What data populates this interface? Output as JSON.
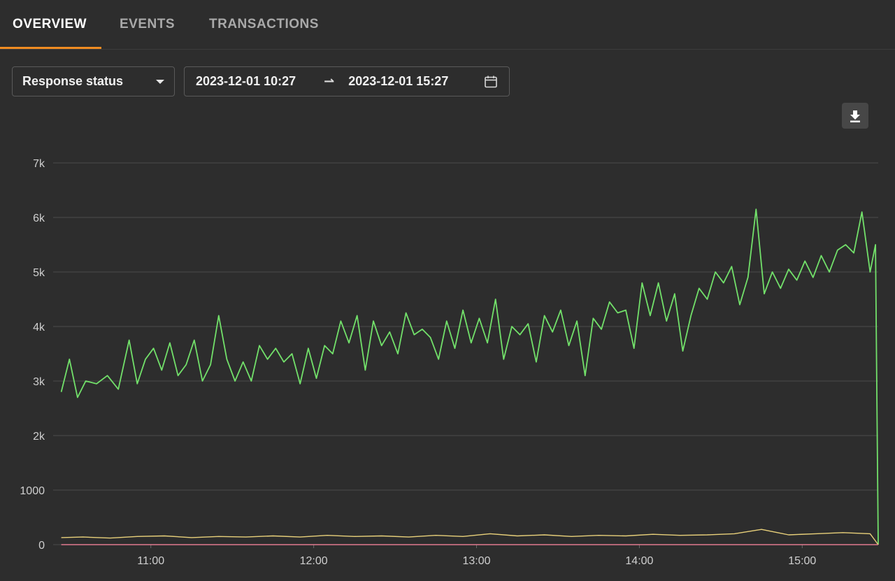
{
  "tabs": [
    {
      "label": "OVERVIEW",
      "active": true
    },
    {
      "label": "EVENTS",
      "active": false
    },
    {
      "label": "TRANSACTIONS",
      "active": false
    }
  ],
  "filter": {
    "selected": "Response status"
  },
  "date_range": {
    "start": "2023-12-01 10:27",
    "end": "2023-12-01 15:27"
  },
  "icons": {
    "select": "caret-down-icon",
    "range": "arrow-right-icon",
    "calendar": "calendar-icon",
    "download": "download-icon"
  },
  "chart_data": {
    "type": "line",
    "x_unit": "minutes since 10:27",
    "xlim": [
      "10:27",
      "15:27"
    ],
    "ylim": [
      0,
      7000
    ],
    "yticks": [
      {
        "value": 0,
        "label": "0"
      },
      {
        "value": 1000,
        "label": "1000"
      },
      {
        "value": 2000,
        "label": "2k"
      },
      {
        "value": 3000,
        "label": "3k"
      },
      {
        "value": 4000,
        "label": "4k"
      },
      {
        "value": 5000,
        "label": "5k"
      },
      {
        "value": 6000,
        "label": "6k"
      },
      {
        "value": 7000,
        "label": "7k"
      }
    ],
    "xticks": [
      "11:00",
      "12:00",
      "13:00",
      "14:00",
      "15:00"
    ],
    "grid": true,
    "series": [
      {
        "color": "#72e06a",
        "points": [
          [
            "10:27",
            2800
          ],
          [
            "10:30",
            3400
          ],
          [
            "10:33",
            2700
          ],
          [
            "10:36",
            3000
          ],
          [
            "10:40",
            2950
          ],
          [
            "10:44",
            3100
          ],
          [
            "10:48",
            2850
          ],
          [
            "10:52",
            3750
          ],
          [
            "10:55",
            2950
          ],
          [
            "10:58",
            3400
          ],
          [
            "11:01",
            3600
          ],
          [
            "11:04",
            3200
          ],
          [
            "11:07",
            3700
          ],
          [
            "11:10",
            3100
          ],
          [
            "11:13",
            3300
          ],
          [
            "11:16",
            3750
          ],
          [
            "11:19",
            3000
          ],
          [
            "11:22",
            3300
          ],
          [
            "11:25",
            4200
          ],
          [
            "11:28",
            3400
          ],
          [
            "11:31",
            3000
          ],
          [
            "11:34",
            3350
          ],
          [
            "11:37",
            3000
          ],
          [
            "11:40",
            3650
          ],
          [
            "11:43",
            3400
          ],
          [
            "11:46",
            3600
          ],
          [
            "11:49",
            3350
          ],
          [
            "11:52",
            3500
          ],
          [
            "11:55",
            2950
          ],
          [
            "11:58",
            3600
          ],
          [
            "12:01",
            3050
          ],
          [
            "12:04",
            3650
          ],
          [
            "12:07",
            3500
          ],
          [
            "12:10",
            4100
          ],
          [
            "12:13",
            3700
          ],
          [
            "12:16",
            4200
          ],
          [
            "12:19",
            3200
          ],
          [
            "12:22",
            4100
          ],
          [
            "12:25",
            3650
          ],
          [
            "12:28",
            3900
          ],
          [
            "12:31",
            3500
          ],
          [
            "12:34",
            4250
          ],
          [
            "12:37",
            3850
          ],
          [
            "12:40",
            3950
          ],
          [
            "12:43",
            3800
          ],
          [
            "12:46",
            3400
          ],
          [
            "12:49",
            4100
          ],
          [
            "12:52",
            3600
          ],
          [
            "12:55",
            4300
          ],
          [
            "12:58",
            3700
          ],
          [
            "13:01",
            4150
          ],
          [
            "13:04",
            3700
          ],
          [
            "13:07",
            4500
          ],
          [
            "13:10",
            3400
          ],
          [
            "13:13",
            4000
          ],
          [
            "13:16",
            3850
          ],
          [
            "13:19",
            4050
          ],
          [
            "13:22",
            3350
          ],
          [
            "13:25",
            4200
          ],
          [
            "13:28",
            3900
          ],
          [
            "13:31",
            4300
          ],
          [
            "13:34",
            3650
          ],
          [
            "13:37",
            4100
          ],
          [
            "13:40",
            3100
          ],
          [
            "13:43",
            4150
          ],
          [
            "13:46",
            3950
          ],
          [
            "13:49",
            4450
          ],
          [
            "13:52",
            4250
          ],
          [
            "13:55",
            4300
          ],
          [
            "13:58",
            3600
          ],
          [
            "14:01",
            4800
          ],
          [
            "14:04",
            4200
          ],
          [
            "14:07",
            4800
          ],
          [
            "14:10",
            4100
          ],
          [
            "14:13",
            4600
          ],
          [
            "14:16",
            3550
          ],
          [
            "14:19",
            4200
          ],
          [
            "14:22",
            4700
          ],
          [
            "14:25",
            4500
          ],
          [
            "14:28",
            5000
          ],
          [
            "14:31",
            4800
          ],
          [
            "14:34",
            5100
          ],
          [
            "14:37",
            4400
          ],
          [
            "14:40",
            4900
          ],
          [
            "14:43",
            6150
          ],
          [
            "14:46",
            4600
          ],
          [
            "14:49",
            5000
          ],
          [
            "14:52",
            4700
          ],
          [
            "14:55",
            5050
          ],
          [
            "14:58",
            4850
          ],
          [
            "15:01",
            5200
          ],
          [
            "15:04",
            4900
          ],
          [
            "15:07",
            5300
          ],
          [
            "15:10",
            5000
          ],
          [
            "15:13",
            5400
          ],
          [
            "15:16",
            5500
          ],
          [
            "15:19",
            5350
          ],
          [
            "15:22",
            6100
          ],
          [
            "15:25",
            5000
          ],
          [
            "15:27",
            5500
          ],
          [
            "15:28",
            0
          ]
        ]
      },
      {
        "color": "#e8d07a",
        "points": [
          [
            "10:27",
            130
          ],
          [
            "10:35",
            140
          ],
          [
            "10:45",
            120
          ],
          [
            "10:55",
            150
          ],
          [
            "11:05",
            160
          ],
          [
            "11:15",
            130
          ],
          [
            "11:25",
            150
          ],
          [
            "11:35",
            140
          ],
          [
            "11:45",
            160
          ],
          [
            "11:55",
            140
          ],
          [
            "12:05",
            170
          ],
          [
            "12:15",
            150
          ],
          [
            "12:25",
            160
          ],
          [
            "12:35",
            140
          ],
          [
            "12:45",
            170
          ],
          [
            "12:55",
            150
          ],
          [
            "13:05",
            200
          ],
          [
            "13:15",
            160
          ],
          [
            "13:25",
            180
          ],
          [
            "13:35",
            150
          ],
          [
            "13:45",
            170
          ],
          [
            "13:55",
            160
          ],
          [
            "14:05",
            190
          ],
          [
            "14:15",
            170
          ],
          [
            "14:25",
            180
          ],
          [
            "14:35",
            200
          ],
          [
            "14:45",
            280
          ],
          [
            "14:55",
            180
          ],
          [
            "15:05",
            200
          ],
          [
            "15:15",
            220
          ],
          [
            "15:25",
            200
          ],
          [
            "15:28",
            0
          ]
        ]
      },
      {
        "color": "#e27a8e",
        "points": [
          [
            "10:27",
            0
          ],
          [
            "15:28",
            0
          ]
        ]
      }
    ]
  }
}
